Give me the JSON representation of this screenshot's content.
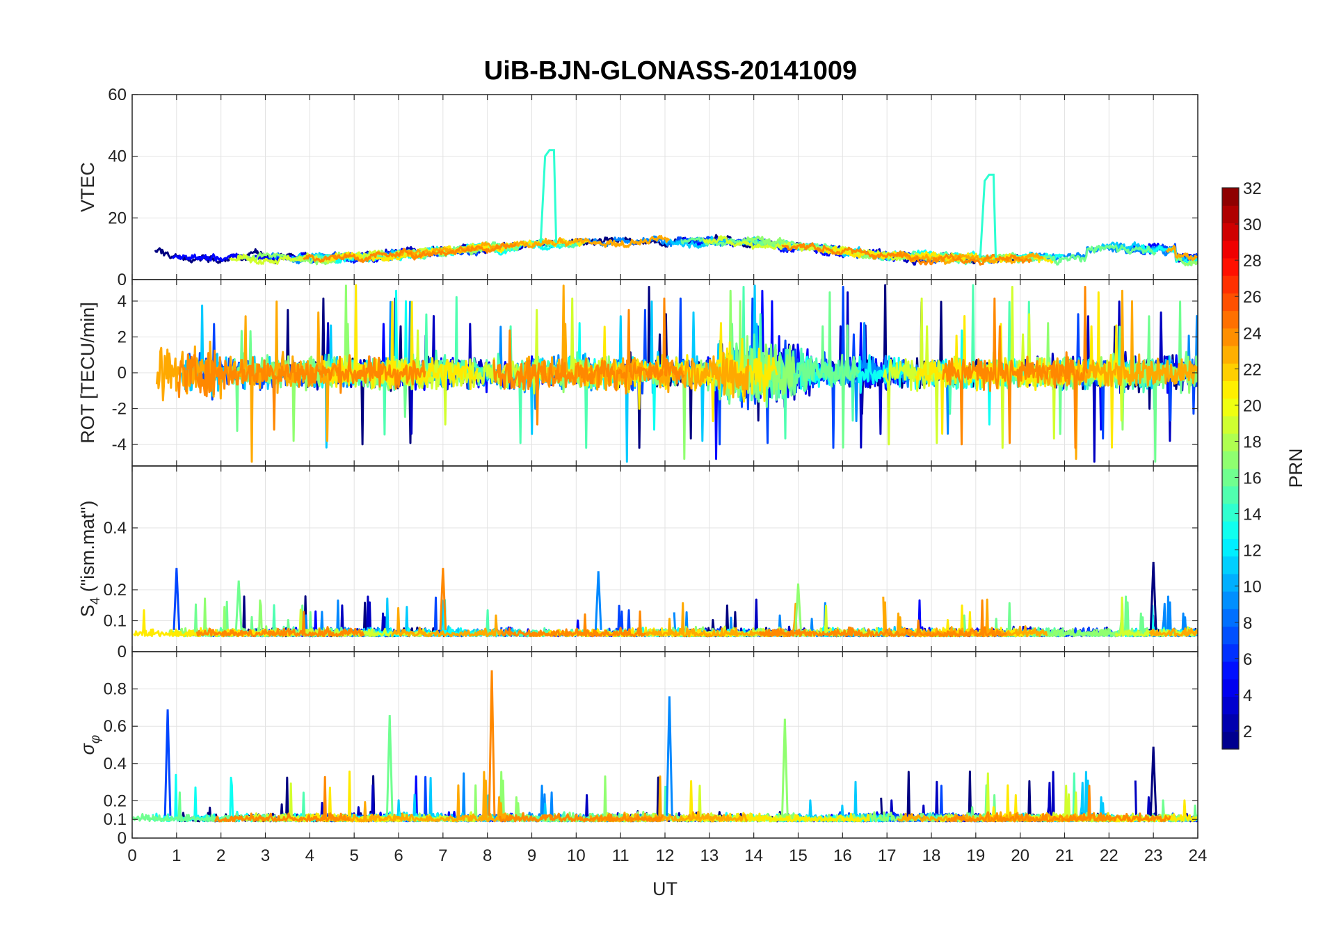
{
  "chart_data": {
    "type": "line",
    "title": "UiB-BJN-GLONASS-20141009",
    "xlabel": "UT",
    "xlim": [
      0,
      24
    ],
    "x_ticks": [
      "0",
      "1",
      "2",
      "3",
      "4",
      "5",
      "6",
      "7",
      "8",
      "9",
      "10",
      "11",
      "12",
      "13",
      "14",
      "15",
      "16",
      "17",
      "18",
      "19",
      "20",
      "21",
      "22",
      "23",
      "24"
    ],
    "panels": [
      {
        "id": "vtec",
        "ylabel": "VTEC",
        "ylim": [
          0,
          60
        ],
        "y_ticks": [
          {
            "v": 0,
            "label": "0"
          },
          {
            "v": 20,
            "label": "20"
          },
          {
            "v": 40,
            "label": "40"
          },
          {
            "v": 60,
            "label": "60"
          }
        ],
        "grid": true
      },
      {
        "id": "rot",
        "ylabel": "ROT [TECU/min]",
        "ylim": [
          -5.2,
          5.2
        ],
        "y_ticks": [
          {
            "v": -4,
            "label": "-4"
          },
          {
            "v": -2,
            "label": "-2"
          },
          {
            "v": 0,
            "label": "0"
          },
          {
            "v": 2,
            "label": "2"
          },
          {
            "v": 4,
            "label": "4"
          }
        ],
        "grid": true
      },
      {
        "id": "s4",
        "ylabel": "S4 (\"ism.mat\")",
        "ylim": [
          0,
          0.6
        ],
        "y_ticks": [
          {
            "v": 0,
            "label": "0"
          },
          {
            "v": 0.1,
            "label": "0.1"
          },
          {
            "v": 0.2,
            "label": "0.2"
          },
          {
            "v": 0.4,
            "label": "0.4"
          }
        ],
        "grid": true
      },
      {
        "id": "sigma_phi",
        "ylabel": "σφ",
        "ylim": [
          0,
          1.0
        ],
        "y_ticks": [
          {
            "v": 0,
            "label": "0"
          },
          {
            "v": 0.1,
            "label": "0.1"
          },
          {
            "v": 0.2,
            "label": "0.2"
          },
          {
            "v": 0.4,
            "label": "0.4"
          },
          {
            "v": 0.6,
            "label": "0.6"
          },
          {
            "v": 0.8,
            "label": "0.8"
          }
        ],
        "grid": true
      }
    ],
    "series_prn": [
      1,
      3,
      5,
      7,
      9,
      11,
      13,
      15,
      16,
      17,
      19,
      21,
      23,
      24
    ],
    "features": {
      "vtec_spikes": [
        {
          "prn": 14,
          "x_start": 9.3,
          "x_end": 9.55,
          "peak": 42
        },
        {
          "prn": 14,
          "x_start": 19.2,
          "x_end": 19.45,
          "peak": 34
        }
      ],
      "s4_peaks": [
        {
          "x": 1.0,
          "y": 0.27
        },
        {
          "x": 2.4,
          "y": 0.23
        },
        {
          "x": 7.0,
          "y": 0.27
        },
        {
          "x": 10.5,
          "y": 0.26
        },
        {
          "x": 15.0,
          "y": 0.22
        },
        {
          "x": 23.0,
          "y": 0.29
        }
      ],
      "sigma_phi_peaks": [
        {
          "x": 0.8,
          "y": 0.69
        },
        {
          "x": 5.8,
          "y": 0.66
        },
        {
          "x": 8.1,
          "y": 0.9
        },
        {
          "x": 12.1,
          "y": 0.76
        },
        {
          "x": 14.7,
          "y": 0.64
        },
        {
          "x": 23.0,
          "y": 0.49
        }
      ]
    },
    "colorbar": {
      "label": "PRN",
      "colormap": "jet",
      "range": [
        1,
        32
      ],
      "ticks": [
        2,
        4,
        6,
        8,
        10,
        12,
        14,
        16,
        18,
        20,
        22,
        24,
        26,
        28,
        30,
        32
      ]
    }
  }
}
